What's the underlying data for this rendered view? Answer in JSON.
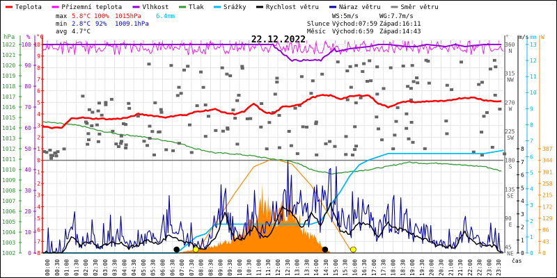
{
  "chart_data": {
    "type": "line",
    "title": "22.12.2022",
    "xlabel": "čas",
    "x_ticks": [
      "00:00",
      "00:30",
      "01:00",
      "01:30",
      "02:00",
      "02:30",
      "03:00",
      "03:30",
      "04:00",
      "04:30",
      "05:00",
      "05:30",
      "06:00",
      "06:30",
      "07:00",
      "07:30",
      "08:00",
      "08:30",
      "09:00",
      "09:30",
      "10:00",
      "10:30",
      "11:00",
      "11:30",
      "12:00",
      "12:30",
      "13:00",
      "13:30",
      "14:00",
      "14:30",
      "15:00",
      "15:30",
      "16:00",
      "16:30",
      "17:00",
      "17:30",
      "18:00",
      "18:30",
      "19:00",
      "19:30",
      "20:00",
      "20:30",
      "21:00",
      "21:30",
      "22:00",
      "22:30",
      "23:00",
      "23:30"
    ],
    "legend": [
      {
        "name": "Teplota",
        "color": "#ff0000"
      },
      {
        "name": "Přízemní teplota",
        "color": "#ff00ff"
      },
      {
        "name": "Vlhkost",
        "color": "#9400d3"
      },
      {
        "name": "Tlak",
        "color": "#339933"
      },
      {
        "name": "Srážky",
        "color": "#00bbee"
      },
      {
        "name": "Rychlost větru",
        "color": "#000000"
      },
      {
        "name": "Náraz větru",
        "color": "#0000aa"
      },
      {
        "name": "Směr větru",
        "color": "#808080"
      }
    ],
    "axes": {
      "pressure": {
        "label": "hPa",
        "range": [
          1002,
          1022
        ],
        "ticks": [
          "1022",
          "1021",
          "1020",
          "1019",
          "1018",
          "1017",
          "1016",
          "1015",
          "1014",
          "1013",
          "1012",
          "1011",
          "1010",
          "1009",
          "1008",
          "1007",
          "1006",
          "1005",
          "1004",
          "1003",
          "1002"
        ],
        "color": "#339933"
      },
      "humidity": {
        "label": "%",
        "range": [
          0,
          100
        ],
        "ticks": [
          "100",
          "90",
          "80",
          "70",
          "60",
          "50",
          "40",
          "30",
          "20",
          "10",
          "0"
        ],
        "color": "#9400d3"
      },
      "temperature": {
        "label": "°C",
        "range": [
          -8,
          10
        ],
        "ticks": [
          "10",
          "9",
          "8",
          "7",
          "6",
          "5",
          "4",
          "3",
          "2",
          "1",
          "0",
          "-1",
          "-2",
          "-3",
          "-4",
          "-5",
          "-6",
          "-7",
          "-8"
        ],
        "color": "#ff0000"
      },
      "direction": {
        "label": "°",
        "range": [
          0,
          360
        ],
        "ticks": [
          {
            "v": "360",
            "d": "N"
          },
          {
            "v": "315",
            "d": "NW"
          },
          {
            "v": "270",
            "d": "W"
          },
          {
            "v": "225",
            "d": "SW"
          },
          {
            "v": "180",
            "d": "S"
          },
          {
            "v": "135",
            "d": "SE"
          },
          {
            "v": "90",
            "d": "E"
          },
          {
            "v": "45",
            "d": "NE"
          }
        ],
        "color": "#555555"
      },
      "wind": {
        "label": "m/s",
        "range": [
          0,
          8
        ],
        "ticks": [
          "8",
          "7",
          "6",
          "5",
          "4",
          "3",
          "2",
          "1",
          "0"
        ],
        "color": "#000000"
      },
      "rain": {
        "label": "mm",
        "range": [
          0,
          13
        ],
        "ticks": [
          "13",
          "12",
          "11",
          "10",
          "9",
          "8",
          "7",
          "6",
          "5",
          "4",
          "3",
          "2",
          "1",
          "0"
        ],
        "color": "#00bbee"
      },
      "solar": {
        "label": "W",
        "range": [
          0,
          387
        ],
        "ticks": [
          "387",
          "344",
          "301",
          "258",
          "215",
          "172",
          "129",
          "86",
          "43",
          "0"
        ],
        "color": "#ff8800"
      }
    },
    "stats": {
      "max": {
        "label": "max",
        "temp": "5.8°C",
        "hum": "100%",
        "press": "1015hPa",
        "rain": "6.4mm"
      },
      "min": {
        "label": "min",
        "temp": "2.8°C",
        "hum": "92%",
        "press": "1009.1hPa"
      },
      "avg": {
        "label": "avg",
        "temp": "4.7°C"
      },
      "ws": "WS:5m/s",
      "wg": "WG:7.7m/s",
      "sun": {
        "label": "Slunce",
        "rise": "Východ:07:59",
        "set": "Západ:16:11"
      },
      "moon": {
        "label": "Měsíc",
        "rise": "Východ:6:59",
        "set": "Západ:14:43"
      }
    },
    "series": {
      "temperature": {
        "hours": [
          0,
          0.5,
          1,
          1.5,
          2,
          2.5,
          3,
          3.5,
          4,
          4.5,
          5,
          5.5,
          6,
          6.5,
          7,
          7.5,
          8,
          8.5,
          9,
          9.5,
          10,
          10.5,
          11,
          11.5,
          12,
          12.5,
          13,
          13.5,
          14,
          14.5,
          15,
          15.5,
          16,
          16.5,
          17,
          17.5,
          18,
          18.5,
          19,
          19.5,
          20,
          20.5,
          21,
          21.5,
          22,
          22.5,
          23,
          23.5,
          24
        ],
        "values": [
          2.9,
          2.8,
          2.8,
          3.6,
          3.7,
          3.6,
          3.6,
          3.55,
          3.6,
          3.7,
          4.0,
          3.9,
          3.8,
          3.7,
          3.9,
          3.9,
          4.2,
          4.3,
          4.4,
          4.1,
          4.0,
          4.2,
          4.9,
          4.2,
          4.0,
          4.6,
          4.7,
          4.9,
          5.4,
          5.6,
          5.6,
          5.3,
          5.5,
          5.6,
          5.6,
          4.9,
          4.6,
          4.9,
          5.1,
          5.0,
          5.1,
          5.1,
          5.1,
          5.3,
          5.4,
          5.4,
          5.2,
          5.1,
          5.1
        ]
      },
      "ground_temperature": {
        "min": 8.9,
        "max": 10.3,
        "note": "oscillating"
      },
      "humidity": {
        "hours": [
          0,
          12,
          12.5,
          13,
          14,
          15,
          16,
          17,
          17.5,
          18,
          19,
          19.5,
          20,
          21,
          21.5,
          22,
          23,
          24
        ],
        "values": [
          100,
          100,
          99,
          98,
          97,
          96,
          98,
          99,
          100,
          100,
          99,
          99,
          100,
          99,
          100,
          99,
          100,
          100
        ]
      },
      "pressure": {
        "hours": [
          0,
          1,
          2,
          3,
          4,
          5,
          6,
          7,
          8,
          9,
          10,
          11,
          12,
          13,
          14,
          15,
          16,
          17,
          18,
          19,
          20,
          21,
          22,
          23,
          24
        ],
        "values": [
          1014.6,
          1014.4,
          1014.2,
          1013.7,
          1013.4,
          1013.2,
          1012.9,
          1012.6,
          1012.0,
          1011.6,
          1011.5,
          1011.3,
          1011.0,
          1010.8,
          1010.0,
          1009.6,
          1009.8,
          1010.0,
          1010.3,
          1010.7,
          1010.6,
          1010.6,
          1010.4,
          1010.3,
          1009.8
        ]
      },
      "rain": {
        "hours": [
          0,
          7,
          7.5,
          8,
          8.5,
          9,
          9.5,
          10,
          11,
          12,
          13,
          14,
          14.5,
          15,
          15.5,
          16,
          16.5,
          17,
          18,
          19,
          20,
          21,
          22,
          23,
          24
        ],
        "values": [
          0,
          0,
          0.5,
          1,
          1.2,
          1.8,
          1.8,
          1.8,
          1.8,
          1.8,
          1.8,
          1.8,
          2.0,
          3.0,
          3.8,
          4.8,
          5.5,
          5.8,
          6.2,
          6.2,
          6.2,
          6.2,
          6.2,
          6.2,
          6.4
        ]
      },
      "wind_speed": {
        "hours": [
          0,
          1,
          1.5,
          2,
          2.5,
          3,
          3.5,
          4,
          4.5,
          5,
          5.5,
          6,
          6.5,
          7,
          7.5,
          8,
          8.5,
          9,
          9.5,
          10,
          10.5,
          11,
          11.5,
          12,
          12.5,
          13,
          13.5,
          14,
          14.5,
          15,
          15.5,
          16,
          16.5,
          17,
          17.5,
          18,
          18.5,
          19,
          19.5,
          20,
          20.5,
          21,
          21.5,
          22,
          22.5,
          23,
          23.5,
          24
        ],
        "values": [
          0,
          0,
          1.2,
          0.6,
          0.9,
          0.4,
          0.8,
          0.8,
          0.4,
          0.6,
          1.0,
          0.6,
          1.3,
          1.1,
          0.8,
          0.5,
          0.3,
          1.2,
          3.0,
          1.0,
          1.1,
          2.0,
          1.1,
          1.7,
          3.5,
          3.0,
          2.0,
          3.0,
          2.2,
          3.8,
          1.8,
          1.5,
          2.3,
          2.2,
          1.2,
          2.3,
          1.8,
          1.7,
          1.2,
          1.1,
          0.6,
          0.5,
          0.5,
          1.6,
          0.8,
          0.6,
          0.5,
          0
        ]
      },
      "wind_gust": {
        "max": 7.7
      },
      "solar": {
        "hours": [
          7,
          8,
          9,
          10,
          10.5,
          11,
          11.5,
          12,
          12.5,
          13,
          13.5,
          14,
          14.5,
          15
        ],
        "values": [
          0,
          15,
          30,
          60,
          90,
          120,
          230,
          130,
          180,
          200,
          120,
          70,
          40,
          0
        ]
      },
      "solar_max": {
        "hours": [
          8,
          9,
          10,
          11,
          12,
          13,
          14,
          15,
          16,
          16.2
        ],
        "values": [
          0,
          110,
          220,
          320,
          350,
          330,
          250,
          130,
          15,
          0
        ]
      }
    },
    "events": [
      {
        "name": "moonrise",
        "time": "06:59",
        "color": "#000000"
      },
      {
        "name": "sunrise",
        "time": "07:59",
        "color": "#ffff00"
      },
      {
        "name": "moonset",
        "time": "14:43",
        "color": "#000000"
      },
      {
        "name": "sunset",
        "time": "16:11",
        "color": "#ffff00"
      }
    ]
  }
}
